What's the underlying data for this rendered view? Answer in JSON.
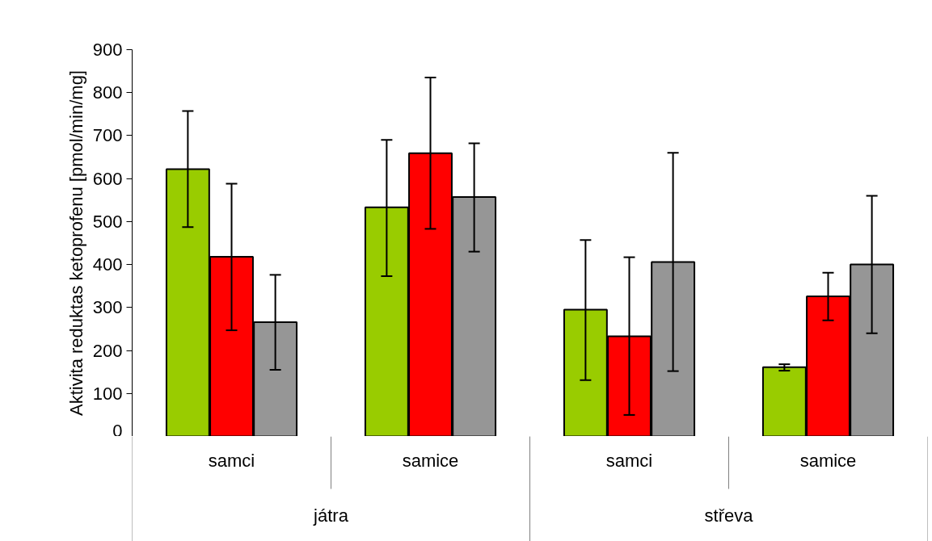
{
  "chart_data": {
    "type": "bar",
    "ylabel": "Aktivita reduktas ketoprofenu [pmol/min/mg]",
    "categories": [
      "samci",
      "samice",
      "samci",
      "samice"
    ],
    "annotations": [
      "játra",
      "střeva"
    ],
    "series": [
      {
        "color": "#99cc00",
        "values": [
          622,
          533,
          295,
          161
        ],
        "errors": [
          [
            487,
            757
          ],
          [
            373,
            690
          ],
          [
            131,
            457
          ],
          [
            153,
            168
          ]
        ]
      },
      {
        "color": "#ff0000",
        "values": [
          418,
          659,
          233,
          326
        ],
        "errors": [
          [
            247,
            588
          ],
          [
            483,
            835
          ],
          [
            50,
            417
          ],
          [
            270,
            381
          ]
        ]
      },
      {
        "color": "#969696",
        "values": [
          266,
          557,
          406,
          400
        ],
        "errors": [
          [
            155,
            376
          ],
          [
            430,
            682
          ],
          [
            152,
            660
          ],
          [
            240,
            560
          ]
        ]
      }
    ],
    "ylim": [
      0,
      900
    ],
    "yticks": [
      0,
      100,
      200,
      300,
      400,
      500,
      600,
      700,
      800,
      900
    ]
  }
}
